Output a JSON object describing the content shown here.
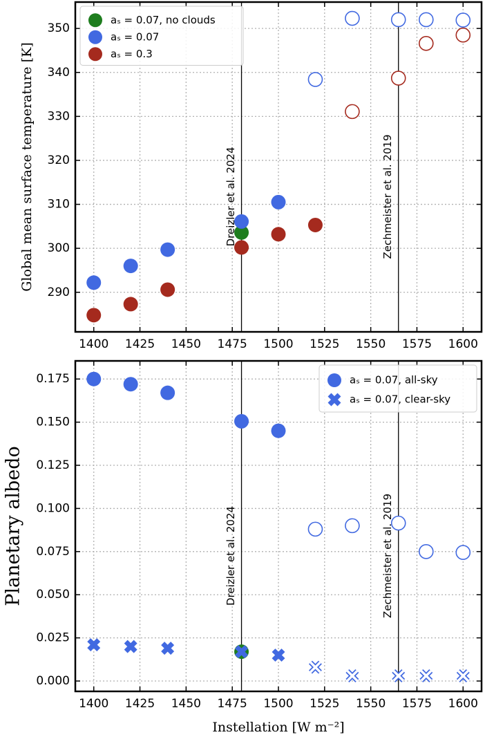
{
  "chart_data": [
    {
      "type": "scatter",
      "ylabel": "Global mean surface temperature [K]",
      "x": [
        1400,
        1420,
        1440,
        1480,
        1500,
        1520,
        1540,
        1565,
        1580,
        1600
      ],
      "xlim": [
        1390,
        1610
      ],
      "xticks": [
        1400,
        1425,
        1450,
        1475,
        1500,
        1525,
        1550,
        1575,
        1600
      ],
      "ylim": [
        281,
        356
      ],
      "yticks": [
        290,
        300,
        310,
        320,
        330,
        340,
        350
      ],
      "grid": true,
      "legend": "upper left",
      "vlines": [
        {
          "x": 1480,
          "label": "Dreizler et al. 2024"
        },
        {
          "x": 1565,
          "label": "Zechmeister et al. 2019"
        }
      ],
      "series": [
        {
          "name": "aₛ = 0.07, no clouds",
          "color": "#1e7d1e",
          "marker": "o",
          "values": [
            null,
            null,
            null,
            303.6,
            null,
            null,
            null,
            null,
            null,
            null
          ],
          "filled": [
            true,
            true,
            true,
            true,
            true,
            true,
            true,
            true,
            true,
            true
          ]
        },
        {
          "name": "aₛ = 0.07",
          "color": "#4169e1",
          "marker": "o",
          "values": [
            292.2,
            296.0,
            299.7,
            306.1,
            310.5,
            338.4,
            352.3,
            352.0,
            352.0,
            351.9
          ],
          "filled": [
            true,
            true,
            true,
            true,
            true,
            false,
            false,
            false,
            false,
            false
          ]
        },
        {
          "name": "aₛ = 0.3",
          "color": "#a52a1e",
          "marker": "o",
          "values": [
            284.8,
            287.3,
            290.6,
            300.2,
            303.2,
            305.3,
            331.1,
            338.7,
            346.6,
            348.5
          ],
          "filled": [
            true,
            true,
            true,
            true,
            true,
            true,
            false,
            false,
            false,
            false
          ]
        }
      ]
    },
    {
      "type": "scatter",
      "ylabel": "Planetary albedo",
      "xlabel": "Instellation [W m⁻²]",
      "x": [
        1400,
        1420,
        1440,
        1480,
        1500,
        1520,
        1540,
        1565,
        1580,
        1600
      ],
      "xlim": [
        1390,
        1610
      ],
      "xticks": [
        1400,
        1425,
        1450,
        1475,
        1500,
        1525,
        1550,
        1575,
        1600
      ],
      "ylim": [
        -0.006,
        0.1855
      ],
      "yticks": [
        {
          "value": 0,
          "label": "0.000"
        },
        {
          "value": 0.025,
          "label": "0.025"
        },
        {
          "value": 0.05,
          "label": "0.050"
        },
        {
          "value": 0.075,
          "label": "0.075"
        },
        {
          "value": 0.1,
          "label": "0.100"
        },
        {
          "value": 0.125,
          "label": "0.125"
        },
        {
          "value": 0.15,
          "label": "0.150"
        },
        {
          "value": 0.175,
          "label": "0.175"
        }
      ],
      "grid": true,
      "legend": "upper right",
      "vlines": [
        {
          "x": 1480,
          "label": "Dreizler et al. 2024"
        },
        {
          "x": 1565,
          "label": "Zechmeister et al. 2019"
        }
      ],
      "series": [
        {
          "color": "#1e7d1e",
          "marker": "o",
          "values": [
            null,
            null,
            null,
            0.017,
            null,
            null,
            null,
            null,
            null,
            null
          ],
          "filled": [
            true,
            true,
            true,
            true,
            true,
            true,
            true,
            true,
            true,
            true
          ]
        },
        {
          "name": "aₛ = 0.07, all-sky",
          "color": "#4169e1",
          "marker": "o",
          "values": [
            0.175,
            0.172,
            0.167,
            0.1505,
            0.145,
            0.088,
            0.09,
            0.0915,
            0.075,
            0.0745
          ],
          "filled": [
            true,
            true,
            true,
            true,
            true,
            false,
            false,
            false,
            false,
            false
          ]
        },
        {
          "name": "aₛ = 0.07, clear-sky",
          "color": "#4169e1",
          "marker": "X",
          "values": [
            0.021,
            0.02,
            0.019,
            0.017,
            0.015,
            0.008,
            0.003,
            0.003,
            0.003,
            0.003
          ],
          "filled": [
            true,
            true,
            true,
            true,
            true,
            false,
            false,
            false,
            false,
            false
          ]
        }
      ]
    }
  ]
}
